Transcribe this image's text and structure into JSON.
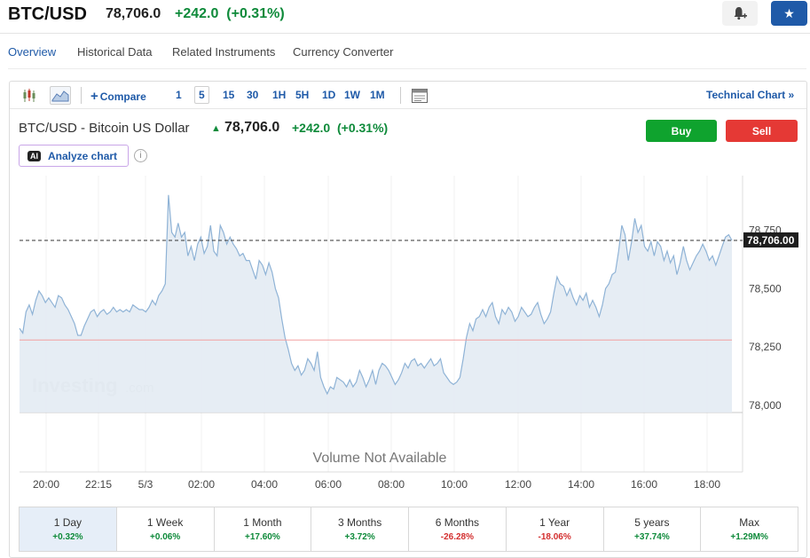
{
  "header": {
    "symbol": "BTC/USD",
    "price": "78,706.0",
    "change": "+242.0",
    "change_pct": "(+0.31%)"
  },
  "nav": {
    "tabs": [
      "Overview",
      "Historical Data",
      "Related Instruments",
      "Currency Converter"
    ],
    "active": "Overview"
  },
  "toolbar": {
    "compare_label": "Compare",
    "intervals": [
      "1",
      "5",
      "15",
      "30",
      "1H",
      "5H",
      "1D",
      "1W",
      "1M"
    ],
    "selected_interval": "5",
    "technical_label": "Technical Chart »"
  },
  "instrument": {
    "title": "BTC/USD - Bitcoin US Dollar",
    "price": "78,706.0",
    "change": "+242.0",
    "change_pct": "(+0.31%)"
  },
  "actions": {
    "buy": "Buy",
    "sell": "Sell",
    "analyze": "Analyze chart",
    "ai_badge": "AI"
  },
  "chart_data": {
    "type": "area",
    "x_ticks": [
      "20:00",
      "22:15",
      "5/3",
      "02:00",
      "04:00",
      "06:00",
      "08:00",
      "10:00",
      "12:00",
      "14:00",
      "16:00",
      "18:00"
    ],
    "y_ticks": [
      "78,750",
      "78,500",
      "78,250",
      "78,000"
    ],
    "y_tick_values": [
      78750,
      78500,
      78250,
      78000
    ],
    "ylim": [
      77970,
      78960
    ],
    "last_price_label": "78,706.00",
    "last_price": 78706,
    "reference_level": 78280,
    "volume_text": "Volume Not Available",
    "watermark": "Investing",
    "watermark_suffix": ".com",
    "values": [
      78330,
      78310,
      78400,
      78430,
      78390,
      78450,
      78490,
      78470,
      78440,
      78460,
      78440,
      78420,
      78470,
      78460,
      78430,
      78410,
      78380,
      78350,
      78300,
      78300,
      78340,
      78370,
      78400,
      78410,
      78380,
      78400,
      78410,
      78390,
      78400,
      78420,
      78400,
      78410,
      78400,
      78410,
      78400,
      78430,
      78420,
      78410,
      78410,
      78400,
      78420,
      78450,
      78430,
      78470,
      78490,
      78520,
      78900,
      78740,
      78720,
      78780,
      78720,
      78740,
      78640,
      78680,
      78620,
      78690,
      78720,
      78650,
      78680,
      78770,
      78660,
      78640,
      78770,
      78740,
      78690,
      78720,
      78690,
      78670,
      78640,
      78650,
      78620,
      78620,
      78580,
      78540,
      78620,
      78600,
      78560,
      78610,
      78570,
      78500,
      78460,
      78370,
      78290,
      78240,
      78180,
      78150,
      78170,
      78130,
      78150,
      78200,
      78180,
      78150,
      78230,
      78120,
      78080,
      78050,
      78080,
      78070,
      78120,
      78110,
      78100,
      78080,
      78110,
      78080,
      78100,
      78150,
      78120,
      78080,
      78110,
      78150,
      78090,
      78150,
      78180,
      78170,
      78150,
      78120,
      78090,
      78110,
      78140,
      78180,
      78160,
      78190,
      78200,
      78170,
      78180,
      78160,
      78180,
      78200,
      78170,
      78180,
      78200,
      78140,
      78120,
      78100,
      78090,
      78100,
      78120,
      78200,
      78290,
      78350,
      78320,
      78370,
      78380,
      78410,
      78380,
      78420,
      78440,
      78380,
      78350,
      78410,
      78390,
      78420,
      78400,
      78360,
      78380,
      78420,
      78400,
      78380,
      78390,
      78420,
      78440,
      78390,
      78350,
      78370,
      78400,
      78480,
      78550,
      78520,
      78510,
      78470,
      78500,
      78460,
      78430,
      78470,
      78450,
      78480,
      78420,
      78450,
      78420,
      78380,
      78430,
      78500,
      78520,
      78560,
      78570,
      78660,
      78770,
      78730,
      78620,
      78700,
      78800,
      78740,
      78770,
      78680,
      78660,
      78700,
      78640,
      78700,
      78680,
      78620,
      78660,
      78610,
      78640,
      78560,
      78610,
      78680,
      78620,
      78580,
      78610,
      78640,
      78660,
      78690,
      78660,
      78620,
      78640,
      78600,
      78640,
      78680,
      78720,
      78730,
      78706
    ],
    "ranges": [
      {
        "label": "1 Day",
        "pct": "+0.32%",
        "dir": "pos"
      },
      {
        "label": "1 Week",
        "pct": "+0.06%",
        "dir": "pos"
      },
      {
        "label": "1 Month",
        "pct": "+17.60%",
        "dir": "pos"
      },
      {
        "label": "3 Months",
        "pct": "+3.72%",
        "dir": "pos"
      },
      {
        "label": "6 Months",
        "pct": "-26.28%",
        "dir": "neg"
      },
      {
        "label": "1 Year",
        "pct": "-18.06%",
        "dir": "neg"
      },
      {
        "label": "5 years",
        "pct": "+37.74%",
        "dir": "pos"
      },
      {
        "label": "Max",
        "pct": "+1.29M%",
        "dir": "pos"
      }
    ],
    "active_range": "1 Day"
  },
  "colors": {
    "accent": "#1f5aa8",
    "positive": "#0e8a3a",
    "negative": "#d32f2f",
    "buy": "#0fa32e",
    "sell": "#e53935"
  }
}
